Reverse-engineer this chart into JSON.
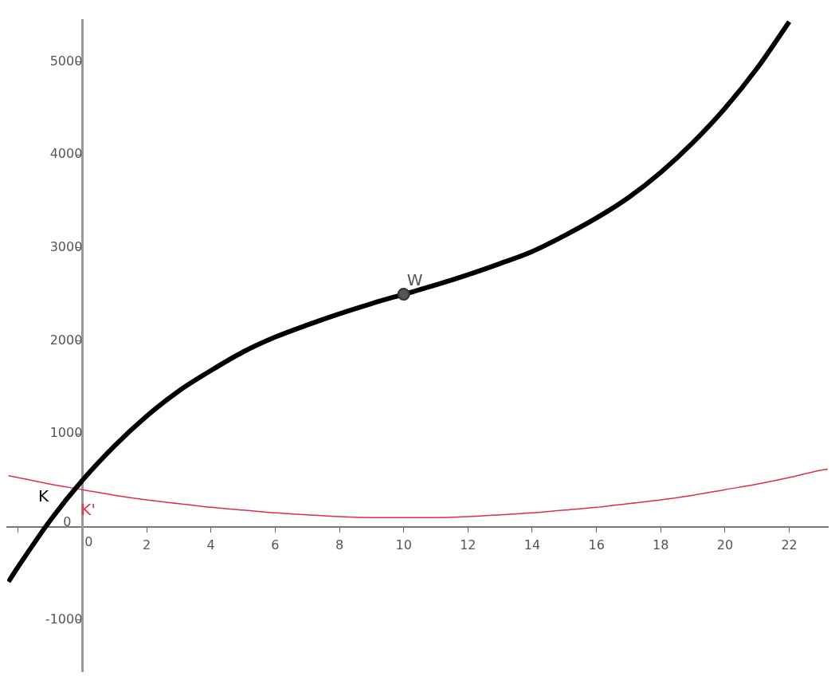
{
  "chart_data": {
    "type": "line",
    "x": [
      -2.3,
      -2,
      -1,
      0,
      1,
      2,
      3,
      4,
      5,
      6,
      7,
      8,
      9,
      10,
      11,
      12,
      13,
      14,
      15,
      16,
      17,
      18,
      19,
      20,
      21,
      22
    ],
    "series": [
      {
        "name": "K",
        "color": "#000000",
        "values": [
          -590,
          -430,
          70,
          500,
          870,
          1190,
          1460,
          1680,
          1880,
          2040,
          2170,
          2290,
          2400,
          2500,
          2600,
          2710,
          2830,
          2960,
          3130,
          3320,
          3540,
          3810,
          4130,
          4500,
          4930,
          5430
        ]
      },
      {
        "name": "K'",
        "color": "#dc2f4c",
        "x": [
          -2.3,
          -2,
          -1,
          0,
          1,
          2,
          3,
          4,
          5,
          6,
          7,
          8,
          9,
          10,
          11,
          12,
          13,
          14,
          15,
          16,
          17,
          18,
          19,
          20,
          21,
          22,
          23,
          23.2
        ],
        "values": [
          550,
          530,
          460,
          400,
          340,
          290,
          250,
          210,
          180,
          150,
          130,
          110,
          100,
          100,
          100,
          110,
          130,
          150,
          180,
          210,
          250,
          290,
          340,
          400,
          460,
          530,
          610,
          620
        ]
      },
      {
        "name": "W",
        "type": "scatter",
        "color": "#555555",
        "x": [
          10
        ],
        "values": [
          2500
        ]
      }
    ],
    "xlim": [
      -2.34,
      23.2
    ],
    "ylim": [
      -1556,
      5444
    ],
    "xticks": [
      {
        "value": -2,
        "label": null
      },
      0,
      2,
      4,
      6,
      8,
      10,
      12,
      14,
      16,
      18,
      20,
      22
    ],
    "yticks": [
      -1000,
      0,
      1000,
      2000,
      3000,
      4000,
      5000
    ],
    "grid": false,
    "legend": false
  }
}
